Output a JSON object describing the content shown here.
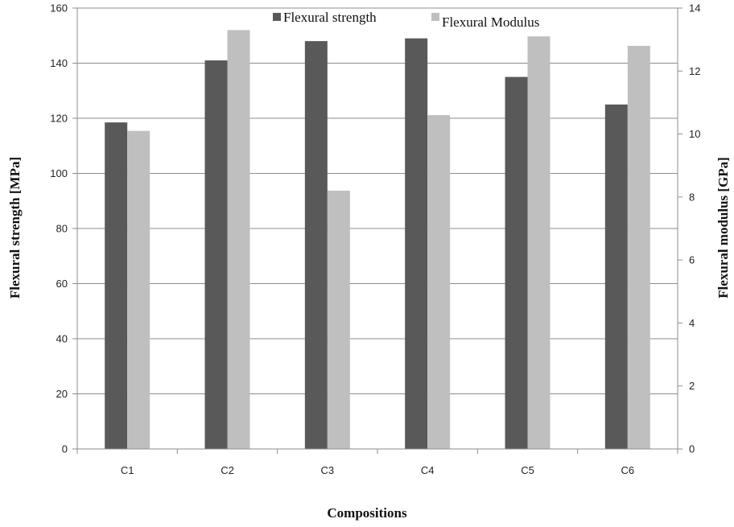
{
  "chart_data": {
    "type": "bar",
    "title": "",
    "xlabel": "Compositions",
    "ylabel": "Flexural strength [MPa]",
    "y2label": "Flexural modulus [GPa]",
    "categories": [
      "C1",
      "C2",
      "C3",
      "C4",
      "C5",
      "C6"
    ],
    "ylim": [
      0,
      160
    ],
    "y2lim": [
      0,
      14
    ],
    "yticks": [
      0,
      20,
      40,
      60,
      80,
      100,
      120,
      140,
      160
    ],
    "y2ticks": [
      0,
      2,
      4,
      6,
      8,
      10,
      12,
      14
    ],
    "grid": true,
    "legend_position": "top",
    "series": [
      {
        "name": "Flexural strength",
        "axis": "left",
        "color": "#595959",
        "values": [
          118.5,
          141,
          148,
          149,
          135,
          125
        ]
      },
      {
        "name": "Flexural Modulus",
        "axis": "right",
        "color": "#bfbfbf",
        "values": [
          10.1,
          13.3,
          8.2,
          10.6,
          13.1,
          12.8
        ]
      }
    ]
  }
}
